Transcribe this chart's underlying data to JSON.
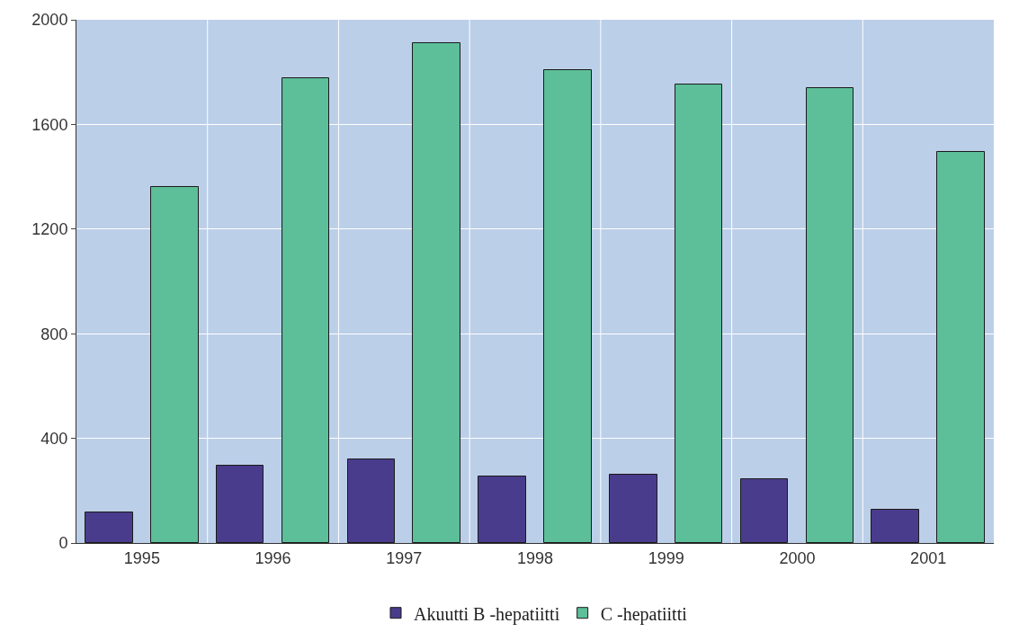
{
  "chart_data": {
    "type": "bar",
    "categories": [
      "1995",
      "1996",
      "1997",
      "1998",
      "1999",
      "2000",
      "2001"
    ],
    "series": [
      {
        "name": "Akuutti B -hepatiitti",
        "color": "#4a3c8c",
        "values": [
          118,
          295,
          319,
          253,
          260,
          243,
          128
        ]
      },
      {
        "name": "C -hepatiitti",
        "color": "#5cbf99",
        "values": [
          1362,
          1778,
          1910,
          1809,
          1754,
          1740,
          1494
        ]
      }
    ],
    "ylim": [
      0,
      2000
    ],
    "yticks": [
      0,
      400,
      800,
      1200,
      1600,
      2000
    ],
    "grid": true,
    "legend": "bottom"
  }
}
